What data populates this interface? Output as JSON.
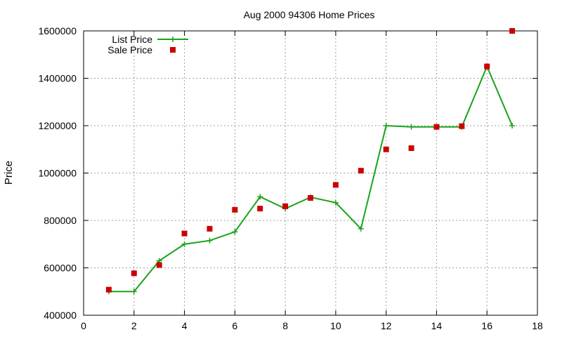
{
  "chart_data": {
    "type": "line",
    "title": "Aug 2000 94306 Home Prices",
    "xlabel": "",
    "ylabel": "Price",
    "xlim": [
      0,
      18
    ],
    "ylim": [
      400000,
      1600000
    ],
    "xticks": [
      0,
      2,
      4,
      6,
      8,
      10,
      12,
      14,
      16,
      18
    ],
    "yticks": [
      400000,
      600000,
      800000,
      1000000,
      1200000,
      1400000,
      1600000
    ],
    "grid": true,
    "legend_position": "top-left",
    "series": [
      {
        "name": "List Price",
        "style": "line-with-plus-markers",
        "color": "#1aa31a",
        "x": [
          1,
          2,
          3,
          4,
          5,
          6,
          7,
          8,
          9,
          10,
          11,
          12,
          13,
          14,
          15,
          16,
          17
        ],
        "y": [
          500000,
          500000,
          630000,
          700000,
          715000,
          752000,
          900000,
          850000,
          898000,
          875000,
          765000,
          1200000,
          1195000,
          1195000,
          1195000,
          1450000,
          1200000
        ]
      },
      {
        "name": "Sale Price",
        "style": "square-markers",
        "color": "#cc0000",
        "x": [
          1,
          2,
          3,
          4,
          5,
          6,
          7,
          8,
          9,
          10,
          11,
          12,
          13,
          14,
          15,
          16,
          17
        ],
        "y": [
          508000,
          577000,
          612000,
          745000,
          765000,
          845000,
          850000,
          860000,
          895000,
          950000,
          1010000,
          1100000,
          1105000,
          1195000,
          1198000,
          1450000,
          1600000
        ]
      }
    ]
  }
}
